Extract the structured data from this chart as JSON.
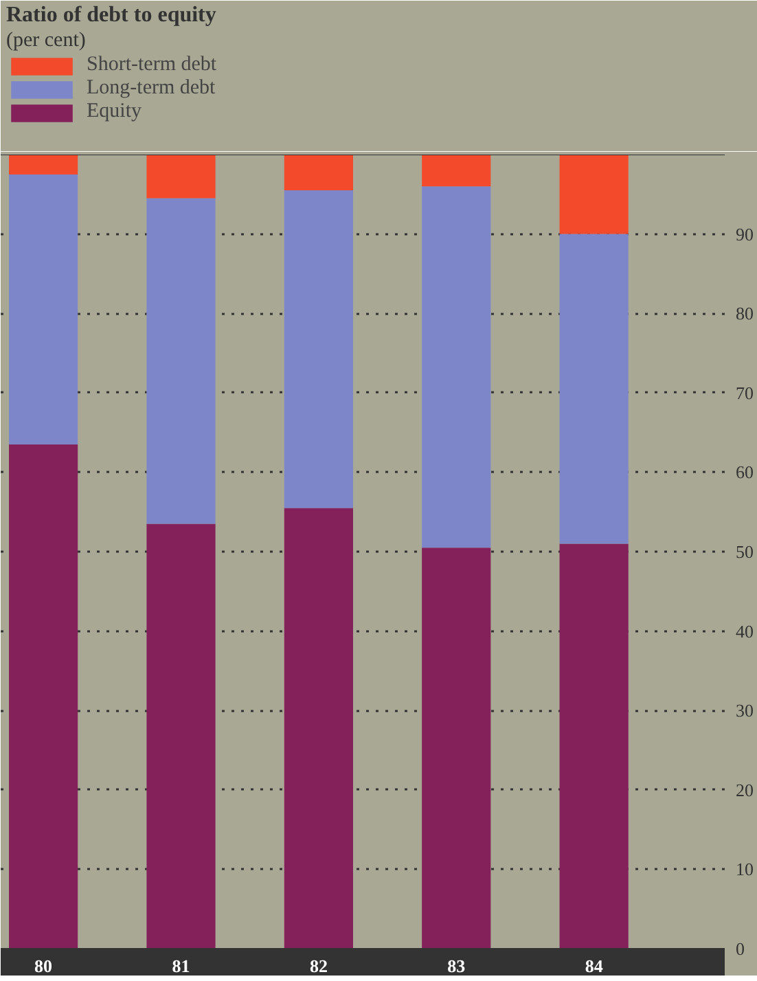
{
  "chart_data": {
    "type": "bar",
    "title": "Ratio of debt to equity",
    "subtitle": "(per cent)",
    "stacked": true,
    "categories": [
      "80",
      "81",
      "82",
      "83",
      "84"
    ],
    "series": [
      {
        "name": "Equity",
        "color": "#84205a",
        "values": [
          63.5,
          53.5,
          55.5,
          50.5,
          51
        ]
      },
      {
        "name": "Long-term debt",
        "color": "#7d86c8",
        "values": [
          34,
          41,
          40,
          45.5,
          39
        ]
      },
      {
        "name": "Short-term debt",
        "color": "#f24a2a",
        "values": [
          2.5,
          5.5,
          4.5,
          4,
          10
        ]
      }
    ],
    "ylim": [
      0,
      100
    ],
    "yticks": [
      0,
      10,
      20,
      30,
      40,
      50,
      60,
      70,
      80,
      90
    ],
    "grid": "y",
    "legend": "top left"
  }
}
